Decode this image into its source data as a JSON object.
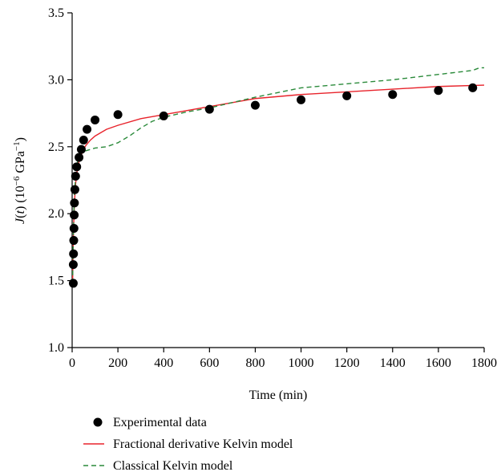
{
  "chart_data": {
    "type": "line",
    "title": "",
    "xlabel": "Time (min)",
    "ylabel": {
      "j": "J",
      "open": "(",
      "t": "t",
      "close": ")",
      "unit_base": " (10",
      "unit_exp": "−6",
      "unit_mid": " GPa",
      "unit_exp2": "−1",
      "unit_end": ")"
    },
    "xlim": [
      0,
      1800
    ],
    "ylim": [
      1.0,
      3.5
    ],
    "xticks": [
      0,
      200,
      400,
      600,
      800,
      1000,
      1200,
      1400,
      1600,
      1800
    ],
    "yticks": [
      1.0,
      1.5,
      2.0,
      2.5,
      3.0,
      3.5
    ],
    "ytick_labels": [
      "1.0",
      "1.5",
      "2.0",
      "2.5",
      "3.0",
      "3.5"
    ],
    "grid": false,
    "legend_position": "bottom-left",
    "series": [
      {
        "name": "Experimental data",
        "kind": "scatter",
        "color": "#000000",
        "x": [
          5,
          5,
          6,
          7,
          8,
          9,
          10,
          12,
          15,
          20,
          30,
          40,
          50,
          65,
          100,
          200,
          400,
          600,
          800,
          1000,
          1200,
          1400,
          1600,
          1750
        ],
        "y": [
          1.48,
          1.62,
          1.7,
          1.8,
          1.89,
          1.99,
          2.08,
          2.18,
          2.28,
          2.35,
          2.42,
          2.48,
          2.55,
          2.63,
          2.7,
          2.74,
          2.73,
          2.78,
          2.81,
          2.85,
          2.88,
          2.89,
          2.92,
          2.94
        ]
      },
      {
        "name": "Fractional derivative Kelvin model",
        "kind": "line",
        "color": "#e8232b",
        "dash": "solid",
        "x": [
          2,
          4,
          6,
          8,
          10,
          15,
          20,
          30,
          40,
          50,
          60,
          80,
          100,
          150,
          200,
          300,
          400,
          500,
          600,
          700,
          800,
          1000,
          1200,
          1400,
          1600,
          1800
        ],
        "y": [
          1.48,
          1.7,
          1.87,
          1.99,
          2.08,
          2.22,
          2.3,
          2.39,
          2.44,
          2.48,
          2.51,
          2.55,
          2.58,
          2.63,
          2.66,
          2.71,
          2.74,
          2.77,
          2.8,
          2.83,
          2.86,
          2.89,
          2.91,
          2.93,
          2.95,
          2.96
        ]
      },
      {
        "name": "Classical Kelvin model",
        "kind": "line",
        "color": "#2a8a3a",
        "dash": "dashed",
        "x": [
          2,
          4,
          6,
          8,
          10,
          15,
          20,
          30,
          40,
          60,
          80,
          100,
          150,
          200,
          250,
          300,
          350,
          400,
          500,
          600,
          800,
          1000,
          1200,
          1400,
          1600,
          1750,
          1780,
          1800
        ],
        "y": [
          1.48,
          1.72,
          1.9,
          2.04,
          2.14,
          2.28,
          2.36,
          2.43,
          2.46,
          2.47,
          2.48,
          2.49,
          2.5,
          2.53,
          2.58,
          2.64,
          2.69,
          2.72,
          2.76,
          2.79,
          2.87,
          2.94,
          2.97,
          3.0,
          3.04,
          3.07,
          3.09,
          3.09
        ]
      }
    ]
  }
}
